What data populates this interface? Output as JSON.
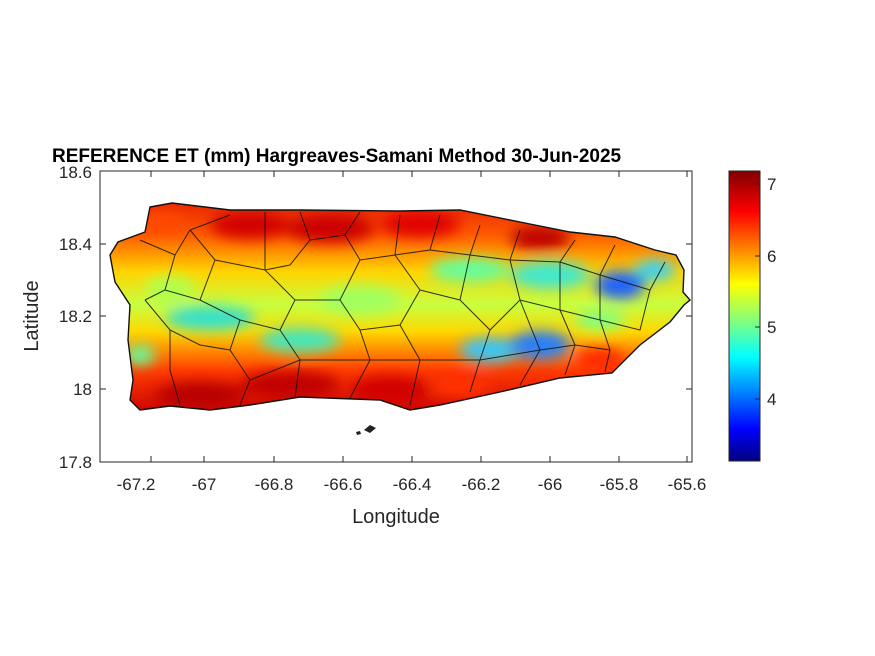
{
  "title": "REFERENCE ET (mm) Hargreaves-Samani Method  30-Jun-2025",
  "map": {
    "xlabel": "Longitude",
    "ylabel": "Latitude",
    "xlim": [
      -67.3,
      -65.58
    ],
    "ylim": [
      17.8,
      18.6
    ],
    "xticks": [
      "-67.2",
      "-67",
      "-66.8",
      "-66.6",
      "-66.4",
      "-66.2",
      "-66",
      "-65.8",
      "-65.6"
    ],
    "yticks": [
      "18.6",
      "18.4",
      "18.2",
      "18"
    ],
    "ytick_bottom": "17.8"
  },
  "colorbar": {
    "colormap": "jet",
    "range": [
      3.15,
      7.2
    ],
    "ticks": [
      "7",
      "6",
      "5",
      "4"
    ],
    "colors": [
      "#00007f",
      "#0000ff",
      "#007fff",
      "#00ffff",
      "#7fff7f",
      "#ffff00",
      "#ff7f00",
      "#ff0000",
      "#7f0000"
    ]
  }
}
